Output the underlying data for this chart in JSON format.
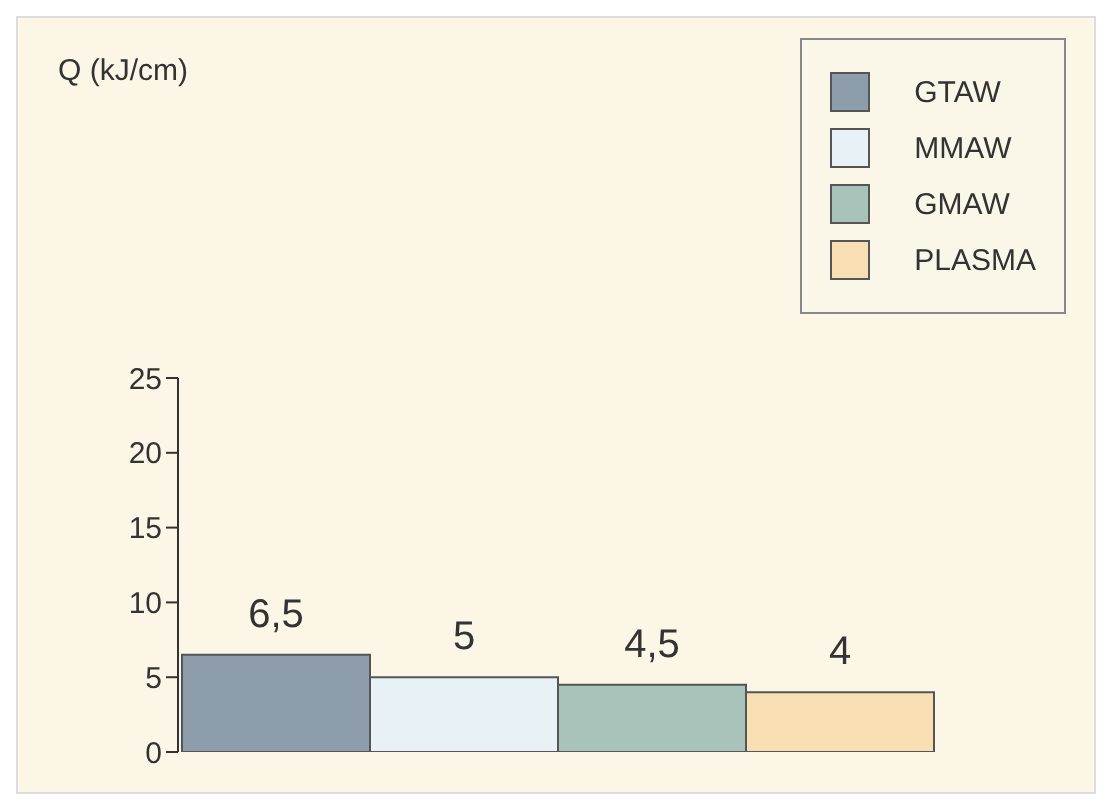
{
  "chart_data": {
    "type": "bar",
    "annotations": [
      "Q (kJ/cm)"
    ],
    "categories": [
      null
    ],
    "series": [
      {
        "name": "GTAW",
        "color": "#8d9dac",
        "values": [
          6.5
        ],
        "value_labels": [
          "6,5"
        ]
      },
      {
        "name": "MMAW",
        "color": "#e8f1f5",
        "values": [
          5
        ],
        "value_labels": [
          "5"
        ]
      },
      {
        "name": "GMAW",
        "color": "#a8c3ba",
        "values": [
          4.5
        ],
        "value_labels": [
          "4,5"
        ]
      },
      {
        "name": "PLASMA",
        "color": "#f8dfb3",
        "values": [
          4
        ],
        "value_labels": [
          "4"
        ]
      }
    ],
    "ylim": [
      0,
      25
    ],
    "yticks": [
      0,
      5,
      10,
      15,
      20,
      25
    ],
    "grid": false,
    "legend": "top right"
  }
}
